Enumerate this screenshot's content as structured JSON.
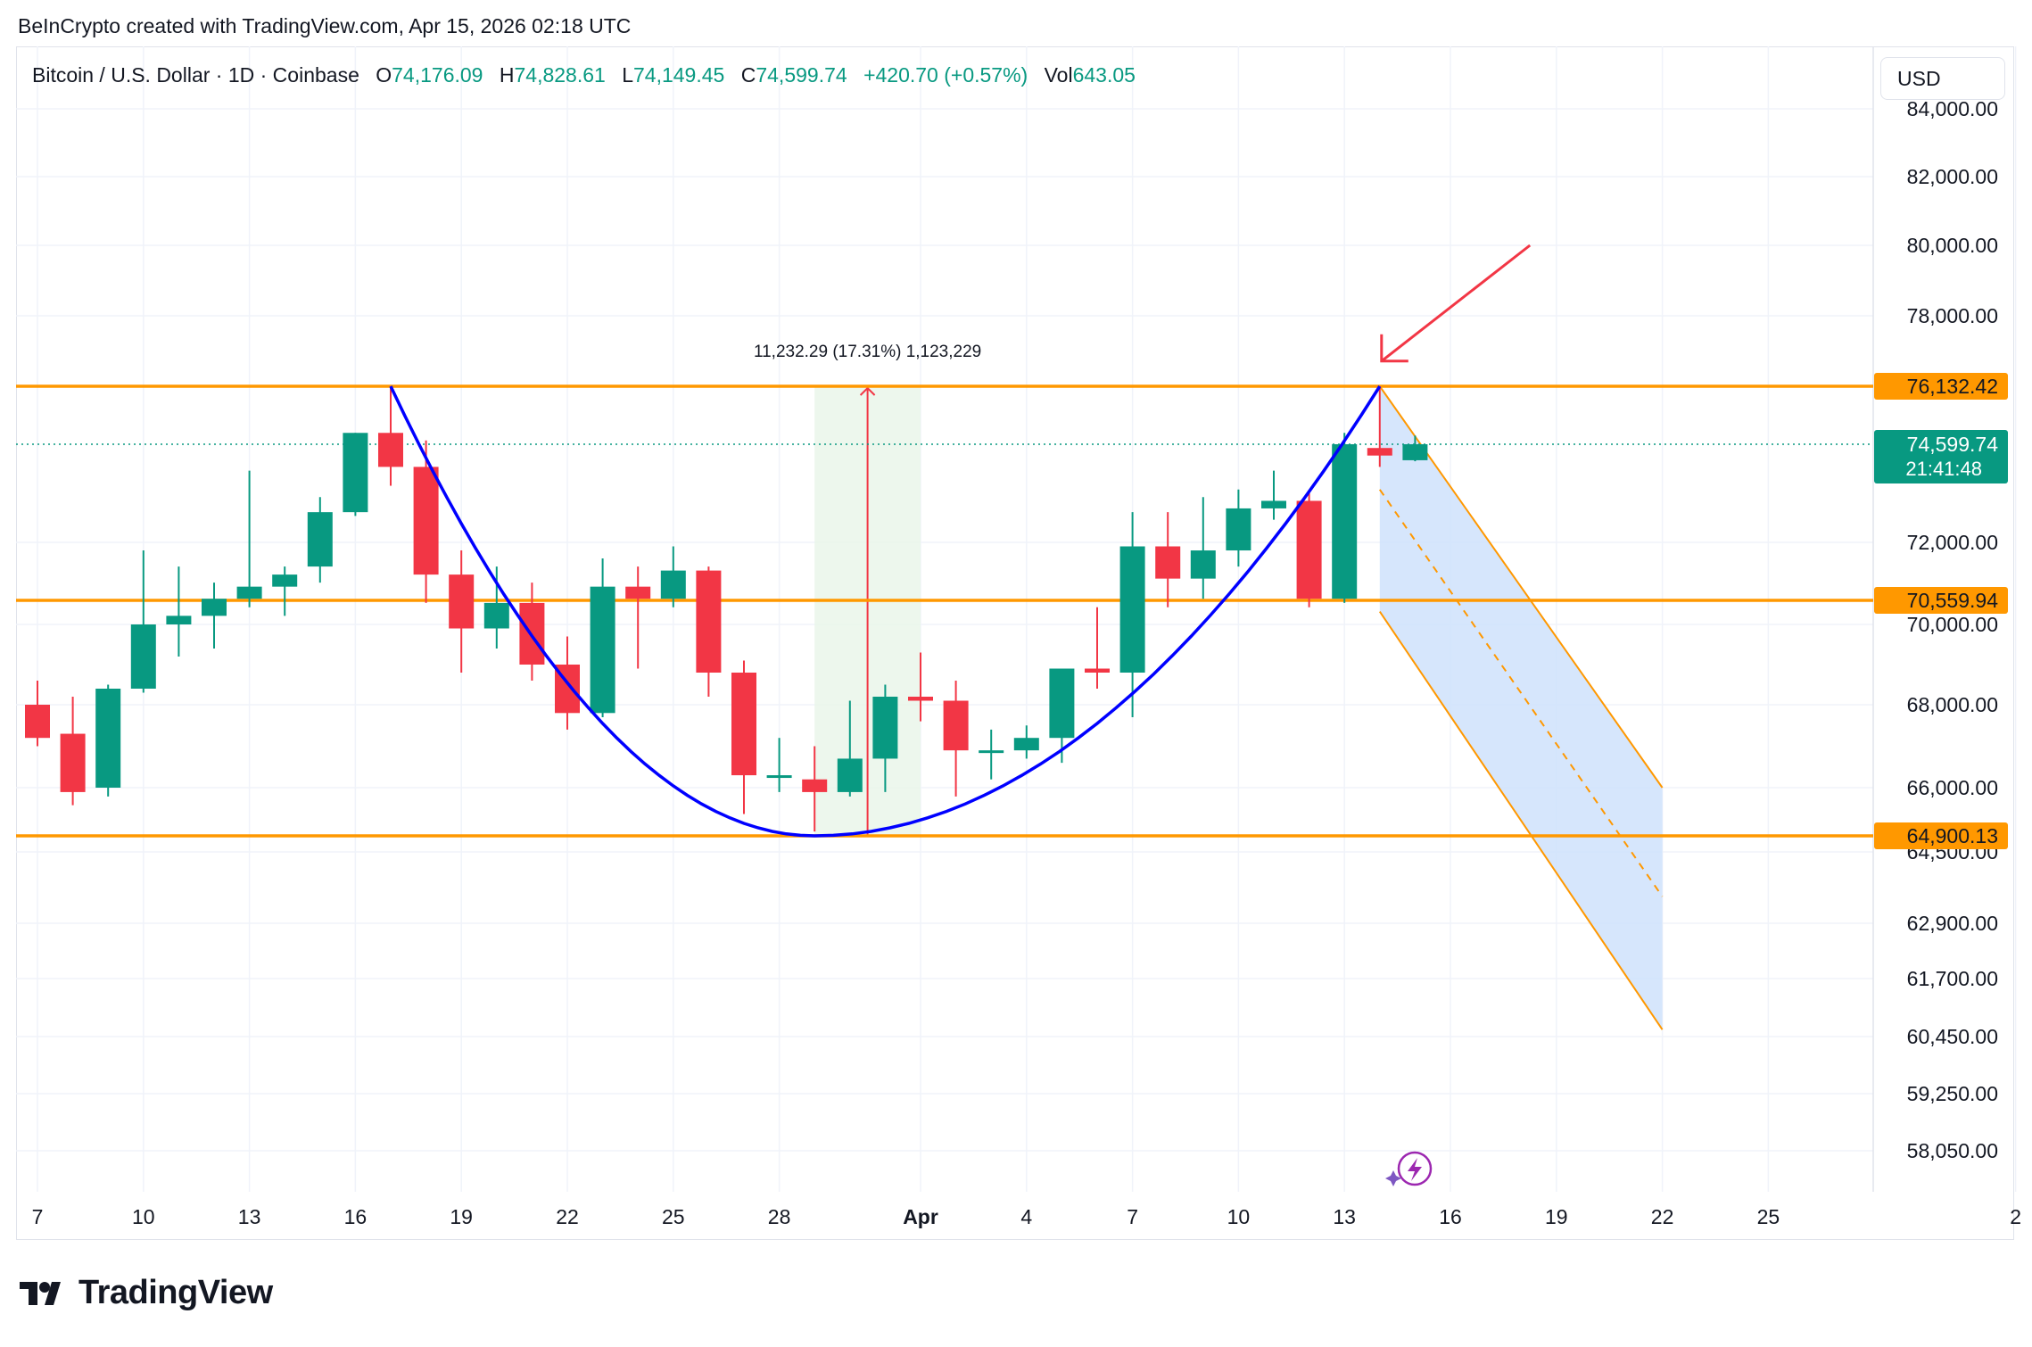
{
  "credit": "BeInCrypto created with TradingView.com, Apr 15, 2026 02:18 UTC",
  "legend": {
    "symbol": "Bitcoin / U.S. Dollar · 1D · Coinbase",
    "o_label": "O",
    "o_value": "74,176.09",
    "h_label": "H",
    "h_value": "74,828.61",
    "l_label": "L",
    "l_value": "74,149.45",
    "c_label": "C",
    "c_value": "74,599.74",
    "change": "+420.70 (+0.57%)",
    "vol_label": "Vol",
    "vol_value": "643.05"
  },
  "currency_button": "USD",
  "brand": "TradingView",
  "colors": {
    "up": "#089981",
    "down": "#f23645",
    "level": "#ff9800",
    "arc": "#0000ff",
    "channel": "#cfe2fb",
    "arrow": "#f23645"
  },
  "chart_data": {
    "type": "candlestick",
    "title": "Bitcoin / U.S. Dollar · 1D · Coinbase",
    "y_axis_ticks": [
      "84,000.00",
      "82,000.00",
      "80,000.00",
      "78,000.00",
      "72,000.00",
      "70,000.00",
      "68,000.00",
      "66,000.00",
      "64,500.00",
      "62,900.00",
      "61,700.00",
      "60,450.00",
      "59,250.00",
      "58,050.00"
    ],
    "x_axis_ticks": [
      "7",
      "10",
      "13",
      "16",
      "19",
      "22",
      "25",
      "28",
      "Apr",
      "4",
      "7",
      "10",
      "13",
      "16",
      "19",
      "22",
      "25",
      "2"
    ],
    "x_range": [
      "2026-03-07",
      "2026-05-02"
    ],
    "candles": [
      {
        "date": "2026-03-07",
        "o": 68000,
        "h": 68600,
        "l": 67000,
        "c": 67200
      },
      {
        "date": "2026-03-08",
        "o": 67300,
        "h": 68200,
        "l": 65600,
        "c": 65900
      },
      {
        "date": "2026-03-09",
        "o": 66000,
        "h": 68500,
        "l": 65800,
        "c": 68400
      },
      {
        "date": "2026-03-10",
        "o": 68400,
        "h": 71800,
        "l": 68300,
        "c": 70000
      },
      {
        "date": "2026-03-11",
        "o": 70000,
        "h": 71400,
        "l": 69200,
        "c": 70200
      },
      {
        "date": "2026-03-12",
        "o": 70200,
        "h": 71000,
        "l": 69400,
        "c": 70600
      },
      {
        "date": "2026-03-13",
        "o": 70600,
        "h": 73900,
        "l": 70400,
        "c": 70900
      },
      {
        "date": "2026-03-14",
        "o": 70900,
        "h": 71400,
        "l": 70200,
        "c": 71200
      },
      {
        "date": "2026-03-15",
        "o": 71400,
        "h": 73200,
        "l": 71000,
        "c": 72800
      },
      {
        "date": "2026-03-16",
        "o": 72800,
        "h": 74900,
        "l": 72700,
        "c": 74900
      },
      {
        "date": "2026-03-17",
        "o": 74900,
        "h": 76100,
        "l": 73500,
        "c": 74000
      },
      {
        "date": "2026-03-18",
        "o": 74000,
        "h": 74700,
        "l": 70500,
        "c": 71200
      },
      {
        "date": "2026-03-19",
        "o": 71200,
        "h": 71800,
        "l": 68800,
        "c": 69900
      },
      {
        "date": "2026-03-20",
        "o": 69900,
        "h": 71400,
        "l": 69400,
        "c": 70500
      },
      {
        "date": "2026-03-21",
        "o": 70500,
        "h": 71000,
        "l": 68600,
        "c": 69000
      },
      {
        "date": "2026-03-22",
        "o": 69000,
        "h": 69700,
        "l": 67400,
        "c": 67800
      },
      {
        "date": "2026-03-23",
        "o": 67800,
        "h": 71600,
        "l": 67700,
        "c": 70900
      },
      {
        "date": "2026-03-24",
        "o": 70900,
        "h": 71400,
        "l": 68900,
        "c": 70600
      },
      {
        "date": "2026-03-25",
        "o": 70600,
        "h": 71900,
        "l": 70400,
        "c": 71300
      },
      {
        "date": "2026-03-26",
        "o": 71300,
        "h": 71400,
        "l": 68200,
        "c": 68800
      },
      {
        "date": "2026-03-27",
        "o": 68800,
        "h": 69100,
        "l": 65400,
        "c": 66300
      },
      {
        "date": "2026-03-28",
        "o": 66300,
        "h": 67200,
        "l": 65900,
        "c": 66300
      },
      {
        "date": "2026-03-29",
        "o": 66200,
        "h": 67000,
        "l": 65000,
        "c": 65900
      },
      {
        "date": "2026-03-30",
        "o": 65900,
        "h": 68100,
        "l": 65800,
        "c": 66700
      },
      {
        "date": "2026-03-31",
        "o": 66700,
        "h": 68500,
        "l": 65900,
        "c": 68200
      },
      {
        "date": "2026-04-01",
        "o": 68200,
        "h": 69300,
        "l": 67600,
        "c": 68100
      },
      {
        "date": "2026-04-02",
        "o": 68100,
        "h": 68600,
        "l": 65800,
        "c": 66900
      },
      {
        "date": "2026-04-03",
        "o": 66900,
        "h": 67400,
        "l": 66200,
        "c": 66900
      },
      {
        "date": "2026-04-04",
        "o": 66900,
        "h": 67500,
        "l": 66700,
        "c": 67200
      },
      {
        "date": "2026-04-05",
        "o": 67200,
        "h": 68900,
        "l": 66600,
        "c": 68900
      },
      {
        "date": "2026-04-06",
        "o": 68900,
        "h": 70400,
        "l": 68400,
        "c": 68800
      },
      {
        "date": "2026-04-07",
        "o": 68800,
        "h": 72800,
        "l": 67700,
        "c": 71900
      },
      {
        "date": "2026-04-08",
        "o": 71900,
        "h": 72800,
        "l": 70400,
        "c": 71100
      },
      {
        "date": "2026-04-09",
        "o": 71100,
        "h": 73200,
        "l": 70600,
        "c": 71800
      },
      {
        "date": "2026-04-10",
        "o": 71800,
        "h": 73400,
        "l": 71400,
        "c": 72900
      },
      {
        "date": "2026-04-11",
        "o": 72900,
        "h": 73900,
        "l": 72600,
        "c": 73100
      },
      {
        "date": "2026-04-12",
        "o": 73100,
        "h": 73300,
        "l": 70400,
        "c": 70600
      },
      {
        "date": "2026-04-13",
        "o": 70600,
        "h": 74900,
        "l": 70500,
        "c": 74600
      },
      {
        "date": "2026-04-14",
        "o": 74500,
        "h": 76132,
        "l": 74000,
        "c": 74300
      },
      {
        "date": "2026-04-15",
        "o": 74176.09,
        "h": 74828.61,
        "l": 74149.45,
        "c": 74599.74
      }
    ],
    "horizontal_levels": [
      {
        "value": 76132.42,
        "label": "76,132.42"
      },
      {
        "value": 70559.94,
        "label": "70,559.94"
      },
      {
        "value": 64900.13,
        "label": "64,900.13"
      }
    ],
    "last_price": {
      "value": 74599.74,
      "label": "74,599.74",
      "countdown": "21:41:48"
    },
    "measure": {
      "label": "11,232.29 (17.31%) 1,123,229",
      "from_date": "2026-03-29",
      "to_date": "2026-04-01",
      "from_value": 64900.13,
      "to_value": 76132.42
    },
    "rounded_bottom_arc": {
      "start": {
        "date": "2026-03-17",
        "value": 76132.42
      },
      "bottom": {
        "date": "2026-03-29",
        "value": 64900.13
      },
      "end": {
        "date": "2026-04-14",
        "value": 76132.42
      }
    },
    "projected_channel": {
      "start_date": "2026-04-14",
      "end_date": "2026-04-22",
      "upper": [
        76132.42,
        66000
      ],
      "mid": [
        73400,
        63500
      ],
      "lower": [
        70300,
        60600
      ]
    },
    "arrow": {
      "from": {
        "date": "2026-04-18",
        "value": 80000
      },
      "to": {
        "date": "2026-04-14",
        "value": 76800
      }
    }
  }
}
